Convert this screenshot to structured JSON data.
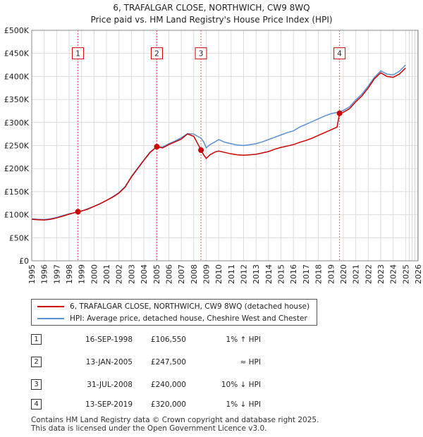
{
  "chart_data": {
    "type": "line",
    "title": "6, TRAFALGAR CLOSE, NORTHWICH, CW9 8WQ",
    "subtitle": "Price paid vs. HM Land Registry's House Price Index (HPI)",
    "xlim": [
      1995,
      2026
    ],
    "ylim": [
      0,
      500000
    ],
    "xticks": [
      1995,
      1996,
      1997,
      1998,
      1999,
      2000,
      2001,
      2002,
      2003,
      2004,
      2005,
      2006,
      2007,
      2008,
      2009,
      2010,
      2011,
      2012,
      2013,
      2014,
      2015,
      2016,
      2017,
      2018,
      2019,
      2020,
      2021,
      2022,
      2023,
      2024,
      2025,
      2026
    ],
    "yticks": [
      0,
      50000,
      100000,
      150000,
      200000,
      250000,
      300000,
      350000,
      400000,
      450000,
      500000
    ],
    "ytick_labels": [
      "£0",
      "£50K",
      "£100K",
      "£150K",
      "£200K",
      "£250K",
      "£300K",
      "£350K",
      "£400K",
      "£450K",
      "£500K"
    ],
    "grid": true,
    "shade_start": 2025.1,
    "series": [
      {
        "name": "6, TRAFALGAR CLOSE, NORTHWICH, CW9 8WQ (detached house)",
        "color": "#cc0000",
        "points": [
          [
            1995,
            90000
          ],
          [
            1995.5,
            89000
          ],
          [
            1996,
            88500
          ],
          [
            1996.5,
            90000
          ],
          [
            1997,
            93000
          ],
          [
            1997.5,
            97000
          ],
          [
            1998,
            101000
          ],
          [
            1998.71,
            106550
          ],
          [
            1999,
            108000
          ],
          [
            1999.5,
            112000
          ],
          [
            2000,
            118000
          ],
          [
            2000.5,
            124000
          ],
          [
            2001,
            131000
          ],
          [
            2001.5,
            138000
          ],
          [
            2002,
            147000
          ],
          [
            2002.5,
            160000
          ],
          [
            2003,
            182000
          ],
          [
            2003.5,
            200000
          ],
          [
            2004,
            218000
          ],
          [
            2004.5,
            235000
          ],
          [
            2005.04,
            247500
          ],
          [
            2005.5,
            245000
          ],
          [
            2006,
            252000
          ],
          [
            2006.5,
            258000
          ],
          [
            2007,
            264000
          ],
          [
            2007.5,
            275000
          ],
          [
            2008,
            270000
          ],
          [
            2008.3,
            255000
          ],
          [
            2008.58,
            240000
          ],
          [
            2008.8,
            230000
          ],
          [
            2009,
            222000
          ],
          [
            2009.3,
            230000
          ],
          [
            2009.7,
            236000
          ],
          [
            2010,
            238000
          ],
          [
            2010.5,
            235000
          ],
          [
            2011,
            232000
          ],
          [
            2011.5,
            230000
          ],
          [
            2012,
            229000
          ],
          [
            2012.5,
            230000
          ],
          [
            2013,
            231000
          ],
          [
            2013.5,
            234000
          ],
          [
            2014,
            237000
          ],
          [
            2014.5,
            242000
          ],
          [
            2015,
            246000
          ],
          [
            2015.5,
            249000
          ],
          [
            2016,
            252000
          ],
          [
            2016.5,
            257000
          ],
          [
            2017,
            261000
          ],
          [
            2017.5,
            266000
          ],
          [
            2018,
            272000
          ],
          [
            2018.5,
            278000
          ],
          [
            2019,
            284000
          ],
          [
            2019.5,
            290000
          ],
          [
            2019.7,
            320000
          ],
          [
            2020,
            322000
          ],
          [
            2020.5,
            330000
          ],
          [
            2021,
            345000
          ],
          [
            2021.5,
            358000
          ],
          [
            2022,
            375000
          ],
          [
            2022.5,
            395000
          ],
          [
            2023,
            408000
          ],
          [
            2023.5,
            400000
          ],
          [
            2024,
            398000
          ],
          [
            2024.5,
            405000
          ],
          [
            2025,
            418000
          ]
        ]
      },
      {
        "name": "HPI: Average price, detached house, Cheshire West and Chester",
        "color": "#5b8fd6",
        "points": [
          [
            1995,
            91000
          ],
          [
            1995.5,
            90000
          ],
          [
            1996,
            89500
          ],
          [
            1996.5,
            91000
          ],
          [
            1997,
            94000
          ],
          [
            1997.5,
            98000
          ],
          [
            1998,
            102000
          ],
          [
            1998.71,
            105500
          ],
          [
            1999,
            108000
          ],
          [
            1999.5,
            113000
          ],
          [
            2000,
            118000
          ],
          [
            2000.5,
            124000
          ],
          [
            2001,
            131000
          ],
          [
            2001.5,
            139000
          ],
          [
            2002,
            148000
          ],
          [
            2002.5,
            161000
          ],
          [
            2003,
            183000
          ],
          [
            2003.5,
            201000
          ],
          [
            2004,
            219000
          ],
          [
            2004.5,
            236000
          ],
          [
            2005.04,
            247500
          ],
          [
            2005.5,
            247000
          ],
          [
            2006,
            254000
          ],
          [
            2006.5,
            260000
          ],
          [
            2007,
            267000
          ],
          [
            2007.5,
            276000
          ],
          [
            2008,
            275000
          ],
          [
            2008.3,
            270000
          ],
          [
            2008.58,
            266000
          ],
          [
            2008.8,
            258000
          ],
          [
            2009,
            245000
          ],
          [
            2009.3,
            252000
          ],
          [
            2009.7,
            258000
          ],
          [
            2010,
            263000
          ],
          [
            2010.5,
            257000
          ],
          [
            2011,
            254000
          ],
          [
            2011.5,
            251000
          ],
          [
            2012,
            250000
          ],
          [
            2012.5,
            252000
          ],
          [
            2013,
            254000
          ],
          [
            2013.5,
            258000
          ],
          [
            2014,
            263000
          ],
          [
            2014.5,
            268000
          ],
          [
            2015,
            273000
          ],
          [
            2015.5,
            278000
          ],
          [
            2016,
            282000
          ],
          [
            2016.5,
            290000
          ],
          [
            2017,
            296000
          ],
          [
            2017.5,
            302000
          ],
          [
            2018,
            308000
          ],
          [
            2018.5,
            314000
          ],
          [
            2019,
            319000
          ],
          [
            2019.5,
            322000
          ],
          [
            2019.7,
            323000
          ],
          [
            2020,
            326000
          ],
          [
            2020.5,
            334000
          ],
          [
            2021,
            349000
          ],
          [
            2021.5,
            362000
          ],
          [
            2022,
            379000
          ],
          [
            2022.5,
            398000
          ],
          [
            2023,
            412000
          ],
          [
            2023.5,
            405000
          ],
          [
            2024,
            403000
          ],
          [
            2024.5,
            411000
          ],
          [
            2025,
            425000
          ]
        ]
      }
    ],
    "sales": [
      {
        "label": "1",
        "x": 1998.71,
        "price": 106550,
        "date": "16-SEP-1998",
        "price_text": "£106,550",
        "hpi_text": "1% ↑ HPI"
      },
      {
        "label": "2",
        "x": 2005.04,
        "price": 247500,
        "date": "13-JAN-2005",
        "price_text": "£247,500",
        "hpi_text": "≈ HPI"
      },
      {
        "label": "3",
        "x": 2008.58,
        "price": 240000,
        "date": "31-JUL-2008",
        "price_text": "£240,000",
        "hpi_text": "10% ↓ HPI"
      },
      {
        "label": "4",
        "x": 2019.7,
        "price": 320000,
        "date": "13-SEP-2019",
        "price_text": "£320,000",
        "hpi_text": "1% ↓ HPI"
      }
    ],
    "marker_label_y": 450000
  },
  "legend": {
    "property": "6, TRAFALGAR CLOSE, NORTHWICH, CW9 8WQ (detached house)",
    "hpi": "HPI: Average price, detached house, Cheshire West and Chester"
  },
  "footer": {
    "line1": "Contains HM Land Registry data © Crown copyright and database right 2025.",
    "line2": "This data is licensed under the Open Government Licence v3.0."
  }
}
